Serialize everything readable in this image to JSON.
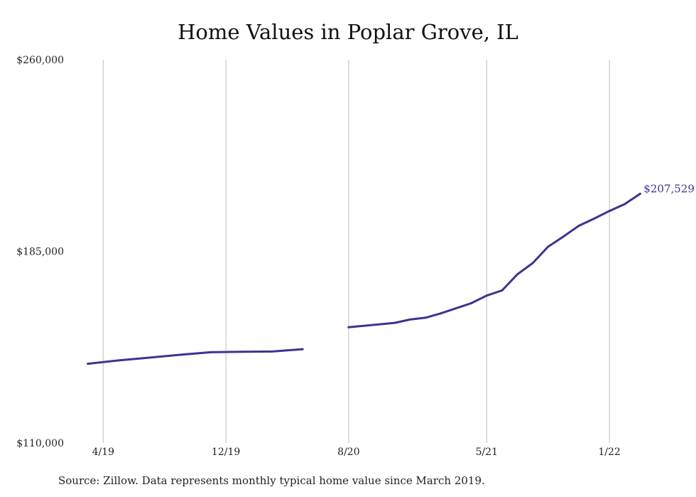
{
  "chart_data": {
    "type": "line",
    "title": "Home Values in Poplar Grove, IL",
    "source": "Source: Zillow. Data represents monthly typical home value since March 2019.",
    "ylim": [
      110000,
      260000
    ],
    "y_ticks": [
      {
        "value": 260000,
        "label": "$260,000"
      },
      {
        "value": 185000,
        "label": "$185,000"
      },
      {
        "value": 110000,
        "label": "$110,000"
      }
    ],
    "x_ticks": [
      {
        "date": "2019-04",
        "label": "4/19"
      },
      {
        "date": "2019-12",
        "label": "12/19"
      },
      {
        "date": "2020-08",
        "label": "8/20"
      },
      {
        "date": "2021-05",
        "label": "5/21"
      },
      {
        "date": "2022-01",
        "label": "1/22"
      }
    ],
    "grid": "vertical",
    "line_color": "#3a3591",
    "end_label": "$207,529",
    "series": [
      {
        "segments": [
          [
            {
              "x": "2019-03",
              "y": 141000
            },
            {
              "x": "2019-05",
              "y": 142300
            },
            {
              "x": "2019-07",
              "y": 143400
            },
            {
              "x": "2019-09",
              "y": 144500
            },
            {
              "x": "2019-11",
              "y": 145500
            },
            {
              "x": "2020-01",
              "y": 145700
            },
            {
              "x": "2020-03",
              "y": 145800
            },
            {
              "x": "2020-05",
              "y": 146700
            }
          ],
          [
            {
              "x": "2020-08",
              "y": 155300
            },
            {
              "x": "2020-11",
              "y": 157000
            },
            {
              "x": "2020-12",
              "y": 158300
            },
            {
              "x": "2021-01",
              "y": 159000
            },
            {
              "x": "2021-02",
              "y": 160700
            },
            {
              "x": "2021-03",
              "y": 162700
            },
            {
              "x": "2021-04",
              "y": 164700
            },
            {
              "x": "2021-05",
              "y": 167700
            },
            {
              "x": "2021-06",
              "y": 169700
            },
            {
              "x": "2021-07",
              "y": 176000
            },
            {
              "x": "2021-08",
              "y": 180400
            },
            {
              "x": "2021-09",
              "y": 186800
            },
            {
              "x": "2021-10",
              "y": 190800
            },
            {
              "x": "2021-11",
              "y": 195000
            },
            {
              "x": "2021-12",
              "y": 197800
            },
            {
              "x": "2022-01",
              "y": 200800
            },
            {
              "x": "2022-02",
              "y": 203500
            },
            {
              "x": "2022-03",
              "y": 207529
            }
          ]
        ]
      }
    ]
  }
}
